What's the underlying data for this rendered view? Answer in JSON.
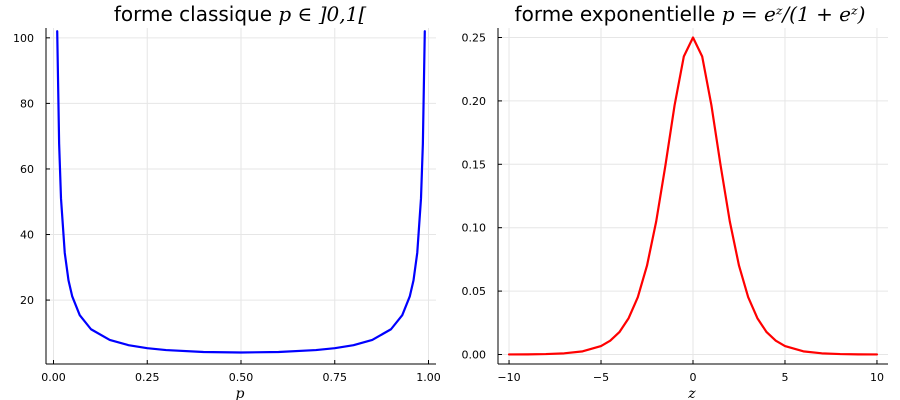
{
  "chart_data": [
    {
      "type": "line",
      "title": "forme classique ",
      "title_math": "p ∈ ]0,1[",
      "xlabel": "p",
      "ylabel": "",
      "xlim": [
        -0.02,
        1.02
      ],
      "ylim": [
        0.5,
        103
      ],
      "xticks": [
        0.0,
        0.25,
        0.5,
        0.75,
        1.0
      ],
      "xtick_labels": [
        "0.00",
        "0.25",
        "0.50",
        "0.75",
        "1.00"
      ],
      "yticks": [
        20,
        40,
        60,
        80,
        100
      ],
      "ytick_labels": [
        "20",
        "40",
        "60",
        "80",
        "100"
      ],
      "grid": true,
      "color": "#0000ff",
      "series": [
        {
          "x": [
            0.0099,
            0.015,
            0.02,
            0.03,
            0.04,
            0.05,
            0.07,
            0.1,
            0.15,
            0.2,
            0.25,
            0.3,
            0.4,
            0.5,
            0.6,
            0.7,
            0.75,
            0.8,
            0.85,
            0.9,
            0.93,
            0.95,
            0.96,
            0.97,
            0.98,
            0.985,
            0.9901
          ],
          "y": [
            102.0,
            67.7,
            51.0,
            34.4,
            26.0,
            21.1,
            15.4,
            11.1,
            7.84,
            6.25,
            5.33,
            4.76,
            4.17,
            4.0,
            4.17,
            4.76,
            5.33,
            6.25,
            7.84,
            11.1,
            15.4,
            21.1,
            26.0,
            34.4,
            51.0,
            67.7,
            102.0
          ]
        }
      ]
    },
    {
      "type": "line",
      "title": "forme exponentielle ",
      "title_math": "p = eᶻ/(1 + eᶻ)",
      "xlabel": "z",
      "ylabel": "",
      "xlim": [
        -10.6,
        10.6
      ],
      "ylim": [
        -0.0075,
        0.2575
      ],
      "xticks": [
        -10,
        -5,
        0,
        5,
        10
      ],
      "xtick_labels": [
        "−10",
        "−5",
        "0",
        "5",
        "10"
      ],
      "yticks": [
        0.0,
        0.05,
        0.1,
        0.15,
        0.2,
        0.25
      ],
      "ytick_labels": [
        "0.00",
        "0.05",
        "0.10",
        "0.15",
        "0.20",
        "0.25"
      ],
      "grid": true,
      "color": "#ff0000",
      "series": [
        {
          "x": [
            -10,
            -9,
            -8,
            -7,
            -6,
            -5,
            -4.5,
            -4,
            -3.5,
            -3,
            -2.5,
            -2,
            -1.5,
            -1,
            -0.5,
            0,
            0.5,
            1,
            1.5,
            2,
            2.5,
            3,
            3.5,
            4,
            4.5,
            5,
            6,
            7,
            8,
            9,
            10
          ],
          "y": [
            5e-05,
            0.00012,
            0.00034,
            0.00091,
            0.00247,
            0.00665,
            0.01085,
            0.01766,
            0.0286,
            0.04518,
            0.0701,
            0.10499,
            0.14914,
            0.19661,
            0.235,
            0.25,
            0.235,
            0.19661,
            0.14914,
            0.10499,
            0.0701,
            0.04518,
            0.0286,
            0.01766,
            0.01085,
            0.00665,
            0.00247,
            0.00091,
            0.00034,
            0.00012,
            5e-05
          ]
        }
      ]
    }
  ]
}
